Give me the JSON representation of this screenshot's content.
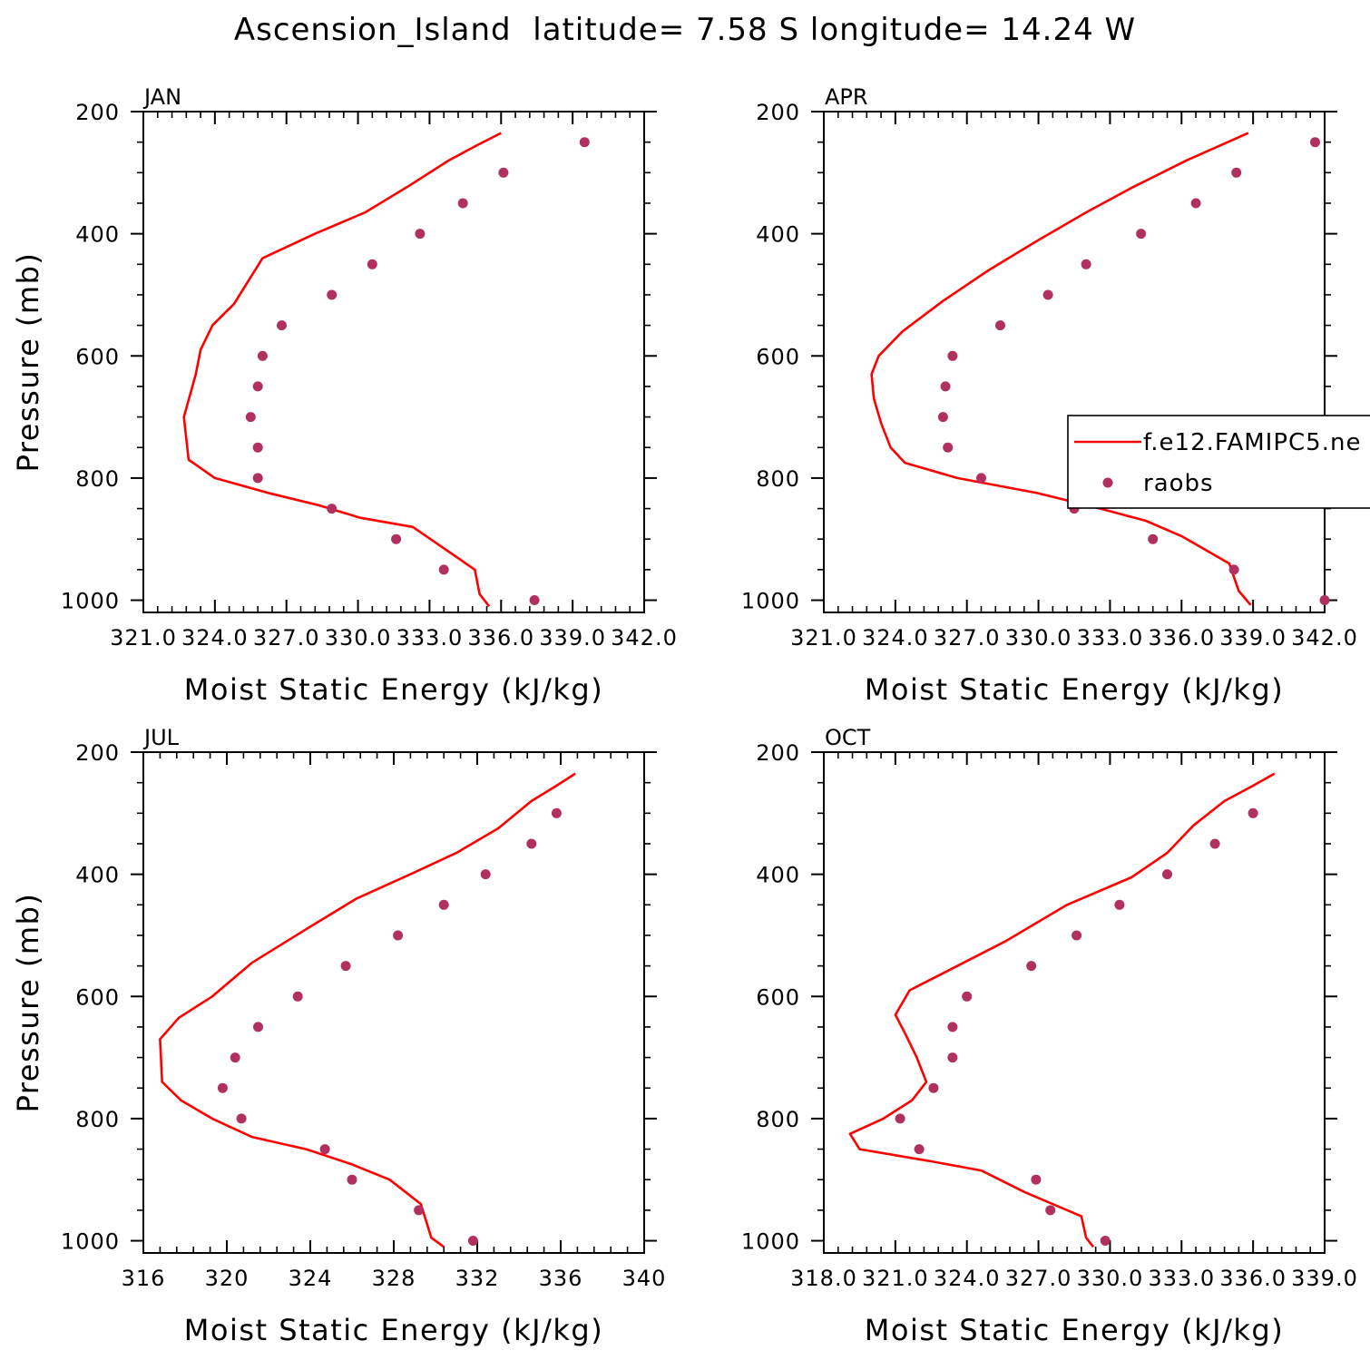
{
  "figure_title": "Ascension_Island  latitude= 7.58 S longitude= 14.24 W",
  "colors": {
    "model": "#ff0000",
    "obs": "#b03060",
    "axis": "#000000"
  },
  "legend": {
    "model_label": "f.e12.FAMIPC5.ne",
    "obs_label": "raobs"
  },
  "chart_data": [
    {
      "type": "line",
      "panel_label": "JAN",
      "xlabel": "Moist Static Energy (kJ/kg)",
      "ylabel": "Pressure (mb)",
      "xlim": [
        321.0,
        342.0
      ],
      "xticks": [
        321.0,
        324.0,
        327.0,
        330.0,
        333.0,
        336.0,
        339.0,
        342.0
      ],
      "xticklabels": [
        "321.0",
        "324.0",
        "327.0",
        "330.0",
        "333.0",
        "336.0",
        "339.0",
        "342.0"
      ],
      "ylim": [
        1020,
        200
      ],
      "yticks": [
        200,
        400,
        600,
        800,
        1000
      ],
      "yticklabels": [
        "200",
        "400",
        "600",
        "800",
        "1000"
      ],
      "series": [
        {
          "name": "f.e12.FAMIPC5.ne",
          "kind": "line",
          "x": [
            336.0,
            335.0,
            333.8,
            332.2,
            330.3,
            328.2,
            326.0,
            324.8,
            323.9,
            323.4,
            323.2,
            322.7,
            322.9,
            324.0,
            326.3,
            328.4,
            330.1,
            332.3,
            333.6,
            334.9,
            335.1,
            335.5
          ],
          "y": [
            235,
            255,
            280,
            320,
            365,
            400,
            440,
            515,
            550,
            590,
            630,
            700,
            770,
            800,
            825,
            845,
            865,
            880,
            915,
            950,
            990,
            1010
          ]
        },
        {
          "name": "raobs",
          "kind": "points",
          "x": [
            339.5,
            336.1,
            334.4,
            332.6,
            330.6,
            328.9,
            326.8,
            326.0,
            325.8,
            325.5,
            325.8,
            325.8,
            328.9,
            331.6,
            333.6,
            337.4
          ],
          "y": [
            250,
            300,
            350,
            400,
            450,
            500,
            550,
            600,
            650,
            700,
            750,
            800,
            850,
            900,
            950,
            1000
          ]
        }
      ]
    },
    {
      "type": "line",
      "panel_label": "APR",
      "xlabel": "Moist Static Energy (kJ/kg)",
      "ylabel": "",
      "xlim": [
        321.0,
        342.0
      ],
      "xticks": [
        321.0,
        324.0,
        327.0,
        330.0,
        333.0,
        336.0,
        339.0,
        342.0
      ],
      "xticklabels": [
        "321.0",
        "324.0",
        "327.0",
        "330.0",
        "333.0",
        "336.0",
        "339.0",
        "342.0"
      ],
      "ylim": [
        1020,
        200
      ],
      "yticks": [
        200,
        400,
        600,
        800,
        1000
      ],
      "yticklabels": [
        "200",
        "400",
        "600",
        "800",
        "1000"
      ],
      "series": [
        {
          "name": "f.e12.FAMIPC5.ne",
          "kind": "line",
          "x": [
            338.8,
            336.2,
            333.9,
            332.0,
            329.8,
            327.9,
            326.0,
            324.3,
            323.3,
            323.0,
            323.1,
            323.4,
            323.8,
            324.4,
            326.6,
            330.0,
            332.6,
            334.5,
            336.0,
            338.0,
            338.4,
            338.9
          ],
          "y": [
            235,
            280,
            325,
            365,
            415,
            460,
            510,
            560,
            600,
            630,
            670,
            710,
            750,
            775,
            800,
            825,
            850,
            870,
            895,
            940,
            985,
            1008
          ]
        },
        {
          "name": "raobs",
          "kind": "points",
          "x": [
            341.6,
            338.3,
            336.6,
            334.3,
            332.0,
            330.4,
            328.4,
            326.4,
            326.1,
            326.0,
            326.2,
            327.6,
            331.5,
            334.8,
            338.2,
            342.0
          ],
          "y": [
            250,
            300,
            350,
            400,
            450,
            500,
            550,
            600,
            650,
            700,
            750,
            800,
            850,
            900,
            950,
            1000
          ]
        }
      ]
    },
    {
      "type": "line",
      "panel_label": "JUL",
      "xlabel": "Moist Static Energy (kJ/kg)",
      "ylabel": "Pressure (mb)",
      "xlim": [
        316,
        340
      ],
      "xticks": [
        316,
        320,
        324,
        328,
        332,
        336,
        340
      ],
      "xticklabels": [
        "316",
        "320",
        "324",
        "328",
        "332",
        "336",
        "340"
      ],
      "ylim": [
        1020,
        200
      ],
      "yticks": [
        200,
        400,
        600,
        800,
        1000
      ],
      "yticklabels": [
        "200",
        "400",
        "600",
        "800",
        "1000"
      ],
      "series": [
        {
          "name": "f.e12.FAMIPC5.ne",
          "kind": "line",
          "x": [
            336.7,
            335.8,
            334.6,
            333.0,
            331.0,
            328.8,
            326.2,
            323.8,
            321.2,
            319.3,
            317.7,
            316.8,
            316.9,
            317.8,
            319.3,
            321.2,
            323.8,
            326.0,
            327.8,
            329.3,
            329.8,
            330.4
          ],
          "y": [
            235,
            255,
            280,
            325,
            365,
            400,
            440,
            490,
            545,
            600,
            635,
            670,
            740,
            770,
            800,
            830,
            850,
            875,
            900,
            940,
            995,
            1010
          ]
        },
        {
          "name": "raobs",
          "kind": "points",
          "x": [
            335.8,
            334.6,
            332.4,
            330.4,
            328.2,
            325.7,
            323.4,
            321.5,
            320.4,
            319.8,
            320.7,
            324.7,
            326.0,
            329.2,
            331.8
          ],
          "y": [
            300,
            350,
            400,
            450,
            500,
            550,
            600,
            650,
            700,
            750,
            800,
            850,
            900,
            950,
            1000
          ]
        }
      ]
    },
    {
      "type": "line",
      "panel_label": "OCT",
      "xlabel": "Moist Static Energy (kJ/kg)",
      "ylabel": "",
      "xlim": [
        318.0,
        339.0
      ],
      "xticks": [
        318.0,
        321.0,
        324.0,
        327.0,
        330.0,
        333.0,
        336.0,
        339.0
      ],
      "xticklabels": [
        "318.0",
        "321.0",
        "324.0",
        "327.0",
        "330.0",
        "333.0",
        "336.0",
        "339.0"
      ],
      "ylim": [
        1020,
        200
      ],
      "yticks": [
        200,
        400,
        600,
        800,
        1000
      ],
      "yticklabels": [
        "200",
        "400",
        "600",
        "800",
        "1000"
      ],
      "series": [
        {
          "name": "f.e12.FAMIPC5.ne",
          "kind": "line",
          "x": [
            336.9,
            336.0,
            334.8,
            333.5,
            332.4,
            330.9,
            328.2,
            325.6,
            323.1,
            321.6,
            321.0,
            321.4,
            321.9,
            322.3,
            321.7,
            320.5,
            319.1,
            319.5,
            322.5,
            324.6,
            326.4,
            328.8,
            329.0,
            329.3
          ],
          "y": [
            235,
            255,
            280,
            320,
            365,
            405,
            450,
            510,
            560,
            590,
            630,
            660,
            700,
            740,
            770,
            800,
            825,
            850,
            870,
            885,
            920,
            960,
            995,
            1010
          ]
        },
        {
          "name": "raobs",
          "kind": "points",
          "x": [
            336.0,
            334.4,
            332.4,
            330.4,
            328.6,
            326.7,
            324.0,
            323.4,
            323.4,
            322.6,
            321.2,
            322.0,
            326.9,
            327.5,
            329.8
          ],
          "y": [
            300,
            350,
            400,
            450,
            500,
            550,
            600,
            650,
            700,
            750,
            800,
            850,
            900,
            950,
            1000
          ]
        }
      ]
    }
  ]
}
